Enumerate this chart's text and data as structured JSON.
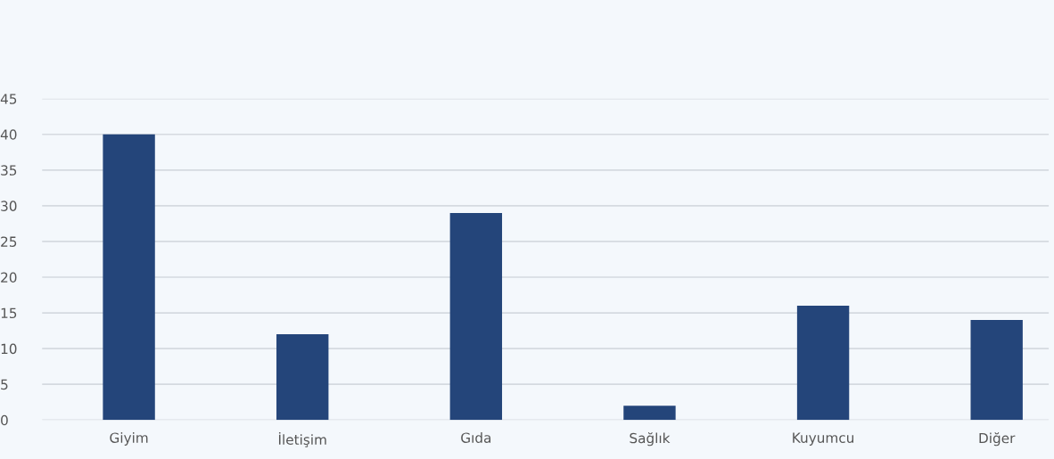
{
  "chart_data": {
    "type": "bar",
    "categories": [
      "Giyim",
      "İletişim",
      "Gıda",
      "Sağlık",
      "Kuyumcu",
      "Diğer"
    ],
    "values": [
      40,
      12,
      29,
      2,
      16,
      14
    ],
    "color": "#24457a",
    "ylim": [
      0,
      45
    ],
    "yticks": [
      0,
      5,
      10,
      15,
      20,
      25,
      30,
      35,
      40,
      45
    ],
    "grid": "y",
    "legend": false
  }
}
